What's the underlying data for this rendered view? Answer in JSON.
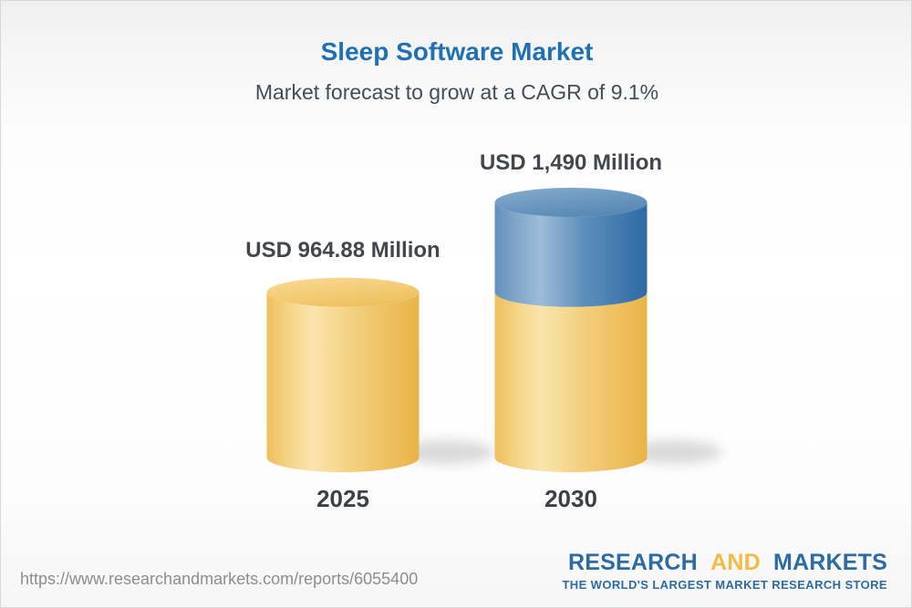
{
  "header": {
    "title": "Sleep Software Market",
    "subtitle": "Market forecast to grow at a CAGR of 9.1%",
    "title_color": "#2070b4",
    "subtitle_color": "#424d57"
  },
  "chart_data": {
    "type": "bar",
    "variant": "3d-cylinder",
    "title": "Sleep Software Market",
    "subtitle": "Market forecast to grow at a CAGR of 9.1%",
    "cagr_percent": 9.1,
    "unit": "USD Million",
    "categories": [
      "2025",
      "2030"
    ],
    "values": [
      964.88,
      1490
    ],
    "value_labels": [
      "USD 964.88 Million",
      "USD 1,490 Million"
    ],
    "ylim": [
      0,
      1490
    ],
    "legend": "none",
    "grid": false,
    "bars": [
      {
        "category": "2025",
        "value": 964.88,
        "label": "USD 964.88 Million",
        "segments": [
          {
            "value": 964.88,
            "palette": "gold"
          }
        ]
      },
      {
        "category": "2030",
        "value": 1490,
        "label": "USD 1,490 Million",
        "segments": [
          {
            "value": 964.88,
            "palette": "gold"
          },
          {
            "value": 525.12,
            "palette": "blue"
          }
        ]
      }
    ],
    "palette": {
      "gold": {
        "side": [
          "#eebf5d",
          "#f5d282",
          "#fae5ae",
          "#f3cf7d",
          "#e9b348"
        ],
        "top": [
          "#f8d993",
          "#eec05c"
        ]
      },
      "blue": {
        "side": [
          "#6292bc",
          "#7ea5c8",
          "#9dbcd8",
          "#5f90ba",
          "#2e6aa5"
        ],
        "top": [
          "#85abcd",
          "#5586b3"
        ]
      }
    },
    "shadow_color": "#8a8a8a"
  },
  "footer": {
    "url": "https://www.researchandmarkets.com/reports/6055400",
    "logo": {
      "part1": "RESEARCH",
      "part2": "AND",
      "part3": "MARKETS",
      "tagline": "THE WORLD'S LARGEST MARKET RESEARCH STORE",
      "blue": "#2d6ba3",
      "gold": "#f3bb45"
    }
  }
}
